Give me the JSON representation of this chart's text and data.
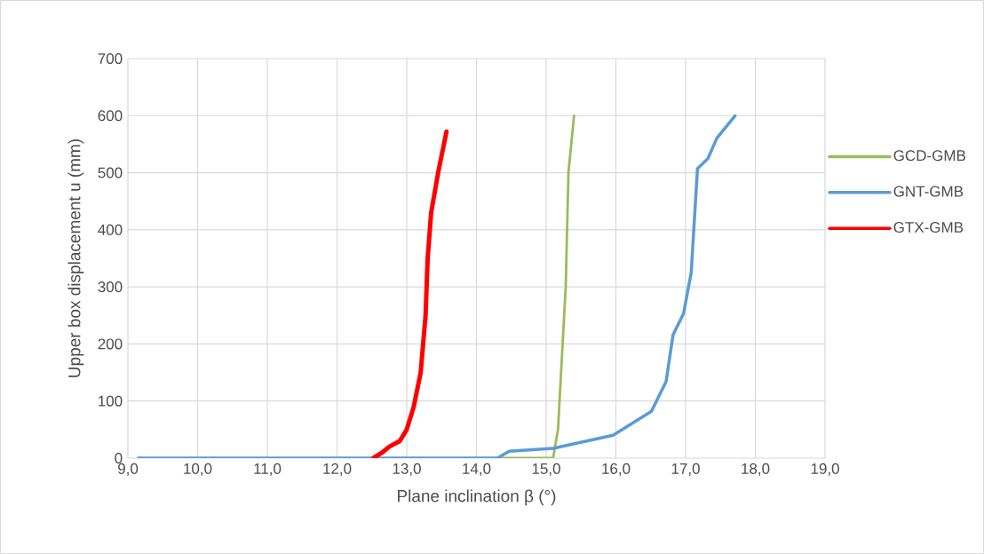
{
  "chart_data": {
    "type": "line",
    "xlabel": "Plane inclination β (°)",
    "ylabel": "Upper  box displacement u (mm)",
    "xlim": [
      9,
      19
    ],
    "ylim": [
      0,
      700
    ],
    "xticks": [
      {
        "value": 9,
        "label": "9,0"
      },
      {
        "value": 10,
        "label": "10,0"
      },
      {
        "value": 11,
        "label": "11,0"
      },
      {
        "value": 12,
        "label": "12,0"
      },
      {
        "value": 13,
        "label": "13,0"
      },
      {
        "value": 14,
        "label": "14,0"
      },
      {
        "value": 15,
        "label": "15,0"
      },
      {
        "value": 16,
        "label": "16,0"
      },
      {
        "value": 17,
        "label": "17,0"
      },
      {
        "value": 18,
        "label": "18,0"
      },
      {
        "value": 19,
        "label": "19,0"
      }
    ],
    "yticks": [
      0,
      100,
      200,
      300,
      400,
      500,
      600,
      700
    ],
    "grid": true,
    "legend": "right",
    "marker": "none",
    "line_style": "solid",
    "series": [
      {
        "name": "GCD-GMB",
        "color": "#9bbb59",
        "x": [
          14.34,
          15.1,
          15.17,
          15.28,
          15.32,
          15.4
        ],
        "values": [
          0,
          0,
          51,
          300,
          502,
          600
        ]
      },
      {
        "name": "GNT-GMB",
        "color": "#5b9bd5",
        "x": [
          9.15,
          14.3,
          14.47,
          15.1,
          15.96,
          16.51,
          16.72,
          16.82,
          16.97,
          17.08,
          17.17,
          17.32,
          17.45,
          17.71
        ],
        "values": [
          0,
          0,
          12,
          17,
          40,
          82,
          134,
          216,
          253,
          325,
          507,
          525,
          561,
          600
        ]
      },
      {
        "name": "GTX-GMB",
        "color": "#ff0000",
        "x": [
          12.52,
          12.65,
          12.75,
          12.9,
          13.0,
          13.1,
          13.2,
          13.27,
          13.3,
          13.35,
          13.45,
          13.57
        ],
        "values": [
          0,
          10,
          20,
          30,
          50,
          90,
          150,
          250,
          350,
          430,
          500,
          572
        ]
      }
    ]
  }
}
